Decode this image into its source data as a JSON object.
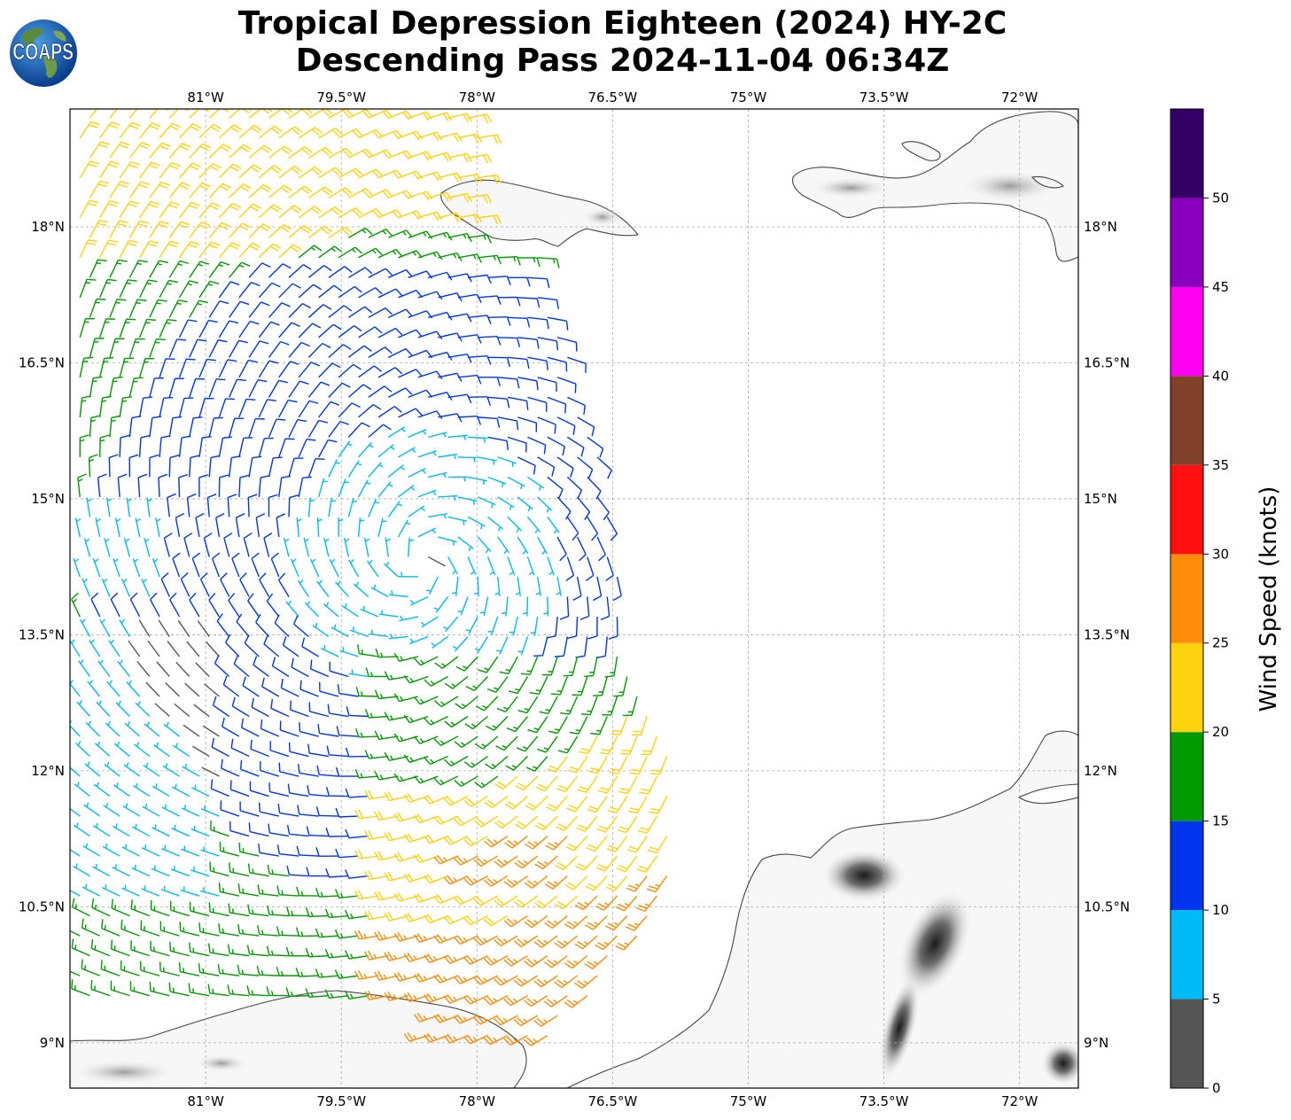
{
  "title": {
    "line1": "Tropical Depression Eighteen (2024) HY-2C",
    "line2": "Descending Pass 2024-11-04 06:34Z"
  },
  "logo": {
    "text": "COAPS",
    "icon": "globe-logo-icon"
  },
  "map": {
    "lon_range": [
      -82.5,
      -71.35
    ],
    "lat_range": [
      8.5,
      19.3
    ],
    "gridlines": true,
    "lon_ticks": [
      {
        "value": -81,
        "label": "81°W"
      },
      {
        "value": -79.5,
        "label": "79.5°W"
      },
      {
        "value": -78,
        "label": "78°W"
      },
      {
        "value": -76.5,
        "label": "76.5°W"
      },
      {
        "value": -75,
        "label": "75°W"
      },
      {
        "value": -73.5,
        "label": "73.5°W"
      },
      {
        "value": -72,
        "label": "72°W"
      }
    ],
    "lat_ticks": [
      {
        "value": 18,
        "label": "18°N"
      },
      {
        "value": 16.5,
        "label": "16.5°N"
      },
      {
        "value": 15,
        "label": "15°N"
      },
      {
        "value": 13.5,
        "label": "13.5°N"
      },
      {
        "value": 12,
        "label": "12°N"
      },
      {
        "value": 10.5,
        "label": "10.5°N"
      },
      {
        "value": 9,
        "label": "9°N"
      }
    ],
    "storm_center": {
      "lon": -78.6,
      "lat": 14.3
    },
    "swath_east_edge_lon": [
      {
        "lat": 19.2,
        "lon": -77.8
      },
      {
        "lat": 15.0,
        "lon": -76.5
      },
      {
        "lat": 13.5,
        "lon": -76.4
      },
      {
        "lat": 12.0,
        "lon": -75.8
      },
      {
        "lat": 10.5,
        "lon": -75.9
      },
      {
        "lat": 9.0,
        "lon": -77.2
      }
    ]
  },
  "colorbar": {
    "label": "Wind Speed (knots)",
    "ticks": [
      0,
      5,
      10,
      15,
      20,
      25,
      30,
      35,
      40,
      45,
      50
    ],
    "max": 55,
    "bins": [
      {
        "min": 0,
        "max": 5,
        "color": "#555555"
      },
      {
        "min": 5,
        "max": 10,
        "color": "#00bbf5"
      },
      {
        "min": 10,
        "max": 15,
        "color": "#0033ee"
      },
      {
        "min": 15,
        "max": 20,
        "color": "#009900"
      },
      {
        "min": 20,
        "max": 25,
        "color": "#ffd20f"
      },
      {
        "min": 25,
        "max": 30,
        "color": "#ff8c0a"
      },
      {
        "min": 30,
        "max": 35,
        "color": "#ff1010"
      },
      {
        "min": 35,
        "max": 40,
        "color": "#80402a"
      },
      {
        "min": 40,
        "max": 45,
        "color": "#ff00f0"
      },
      {
        "min": 45,
        "max": 50,
        "color": "#8800bb"
      },
      {
        "min": 50,
        "max": 55,
        "color": "#330066"
      }
    ]
  }
}
